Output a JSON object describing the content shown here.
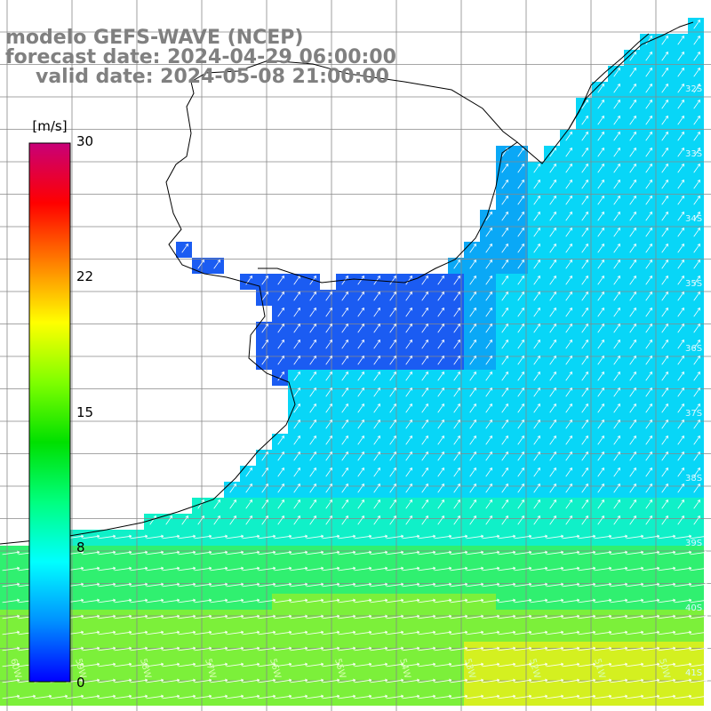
{
  "titles": {
    "model": "modelo GEFS-WAVE (NCEP)",
    "forecast": "forecast date: 2024-04-29 06:00:00",
    "valid": "valid date: 2024-05-08 21:00:00"
  },
  "colorbar": {
    "unit": "[m/s]",
    "ticks": [
      "30",
      "22",
      "15",
      "8",
      "0"
    ],
    "gradient": [
      "#0000ff",
      "#0090ff",
      "#00ffff",
      "#00ff7f",
      "#00e000",
      "#7fff00",
      "#ffff00",
      "#ff8000",
      "#ff0000",
      "#c80078"
    ]
  },
  "map": {
    "lat_labels": [
      "32S",
      "33S",
      "34S",
      "35S",
      "36S",
      "37S",
      "38S",
      "39S",
      "40S",
      "41S"
    ],
    "lon_labels": [
      "60W",
      "59W",
      "58W",
      "57W",
      "56W",
      "55W",
      "54W",
      "53W",
      "52W",
      "51W",
      "50W"
    ],
    "ocean_colors": [
      "#1b5cf2",
      "#0aa8f6",
      "#08d6f7",
      "#10f0c8",
      "#30f070",
      "#7cf03a",
      "#d4f020"
    ]
  }
}
